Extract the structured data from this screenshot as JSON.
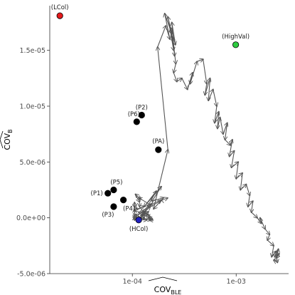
{
  "chart_data": {
    "type": "scatter",
    "x_scale": "log10",
    "xlim": [
      1.6e-05,
      0.0032
    ],
    "ylim": [
      -5e-06,
      1.9e-05
    ],
    "grid": false,
    "x_ticks": [
      {
        "value": 0.0001,
        "label": "1e-04"
      },
      {
        "value": 0.001,
        "label": "1e-03"
      }
    ],
    "y_ticks": [
      {
        "value": -5e-06,
        "label": "-5.0e-06"
      },
      {
        "value": 0,
        "label": "0.0e+00"
      },
      {
        "value": 5e-06,
        "label": "5.0e-06"
      },
      {
        "value": 1e-05,
        "label": "1.0e-05"
      },
      {
        "value": 1.5e-05,
        "label": "1.5e-05"
      }
    ],
    "xlabel": "COV",
    "xlabel_sub": "BLE",
    "ylabel": "COV",
    "ylabel_sub": "B",
    "points": [
      {
        "label": "(LCol)",
        "x": 2e-05,
        "y": 1.81e-05,
        "color": "#e41a1c"
      },
      {
        "label": "(HighVal)",
        "x": 0.00099,
        "y": 1.55e-05,
        "color": "#2ecc40"
      },
      {
        "label": "(HCol)",
        "x": 0.000115,
        "y": -2e-07,
        "color": "#1f1fbf"
      },
      {
        "label": "(P2)",
        "x": 0.000123,
        "y": 9.2e-06,
        "color": "#000000"
      },
      {
        "label": "(P6)",
        "x": 0.00011,
        "y": 8.6e-06,
        "color": "#000000"
      },
      {
        "label": "(PA)",
        "x": 0.000178,
        "y": 6.1e-06,
        "color": "#000000"
      },
      {
        "label": "(P5)",
        "x": 6.6e-05,
        "y": 2.5e-06,
        "color": "#000000"
      },
      {
        "label": "(P1)",
        "x": 5.8e-05,
        "y": 2.2e-06,
        "color": "#000000"
      },
      {
        "label": "(P4)",
        "x": 8.2e-05,
        "y": 1.6e-06,
        "color": "#000000"
      },
      {
        "label": "(P3)",
        "x": 6.6e-05,
        "y": 1e-06,
        "color": "#000000"
      }
    ],
    "trajectory": {
      "color": "#555555",
      "arrows": true,
      "x": [
        0.0001,
        0.00015,
        0.000125,
        0.00017,
        0.00013,
        0.00019,
        0.000155,
        0.0002,
        0.00016,
        0.00022,
        0.000175,
        0.00021,
        0.00023,
        0.000205,
        0.00024,
        0.00022,
        0.00025,
        0.000235,
        0.00026,
        0.00024,
        0.000255,
        0.000245,
        0.000262,
        0.00025,
        0.000268,
        0.0003,
        0.00034,
        0.00038,
        0.00036,
        0.00042,
        0.00048,
        0.00052,
        0.0005,
        0.00056,
        0.00054,
        0.0006,
        0.00065,
        0.00062,
        0.00068,
        0.00066,
        0.0007,
        0.00075,
        0.00082,
        0.00078,
        0.00088,
        0.00092,
        0.00086,
        0.00096,
        0.0009,
        0.00105,
        0.001,
        0.00115,
        0.0011,
        0.00125,
        0.00135,
        0.0013,
        0.00145,
        0.0014,
        0.0016,
        0.00175,
        0.0017,
        0.0019,
        0.0021,
        0.002,
        0.0023,
        0.0022,
        0.0024,
        0.0025,
        0.0023,
        0.0026,
        0.00245,
        0.00255,
        0.00235,
        0.0025
      ],
      "y": [
        -2e-07,
        1.2e-06,
        2e-07,
        2.4e-06,
        1e-06,
        2.8e-06,
        1.5e-06,
        1.8e-06,
        8e-07,
        6.1e-06,
        1.53e-05,
        1.72e-05,
        1.6e-05,
        1.83e-05,
        1.65e-05,
        1.8e-05,
        1.5e-05,
        1.7e-05,
        1.55e-05,
        1.75e-05,
        1.45e-05,
        1.62e-05,
        1.38e-05,
        1.3e-05,
        1.22e-05,
        1.25e-05,
        1.15e-05,
        1.3e-05,
        1.2e-05,
        1.4e-05,
        1.42e-05,
        1.2e-05,
        1.1e-05,
        1.25e-05,
        1.05e-05,
        1.15e-05,
        1e-05,
        8.5e-06,
        9.5e-06,
        8e-06,
        9e-06,
        7.5e-06,
        8.5e-06,
        7e-06,
        6.5e-06,
        7e-06,
        5.5e-06,
        6e-06,
        4.5e-06,
        5e-06,
        3.5e-06,
        4e-06,
        2.5e-06,
        3e-06,
        2e-06,
        1e-06,
        1.5e-06,
        5e-07,
        0.0,
        -5e-07,
        0.0,
        -1e-06,
        -1.5e-06,
        -2e-06,
        -2.5e-06,
        -3.5e-06,
        -3e-06,
        -4e-06,
        -3.8e-06,
        -3.2e-06,
        -3.6e-06,
        -2.8e-06,
        -3.5e-06,
        -3e-06
      ]
    },
    "cluster_jitter": {
      "center_x": 0.00019,
      "center_y": 1.5e-06,
      "count": 40
    }
  }
}
